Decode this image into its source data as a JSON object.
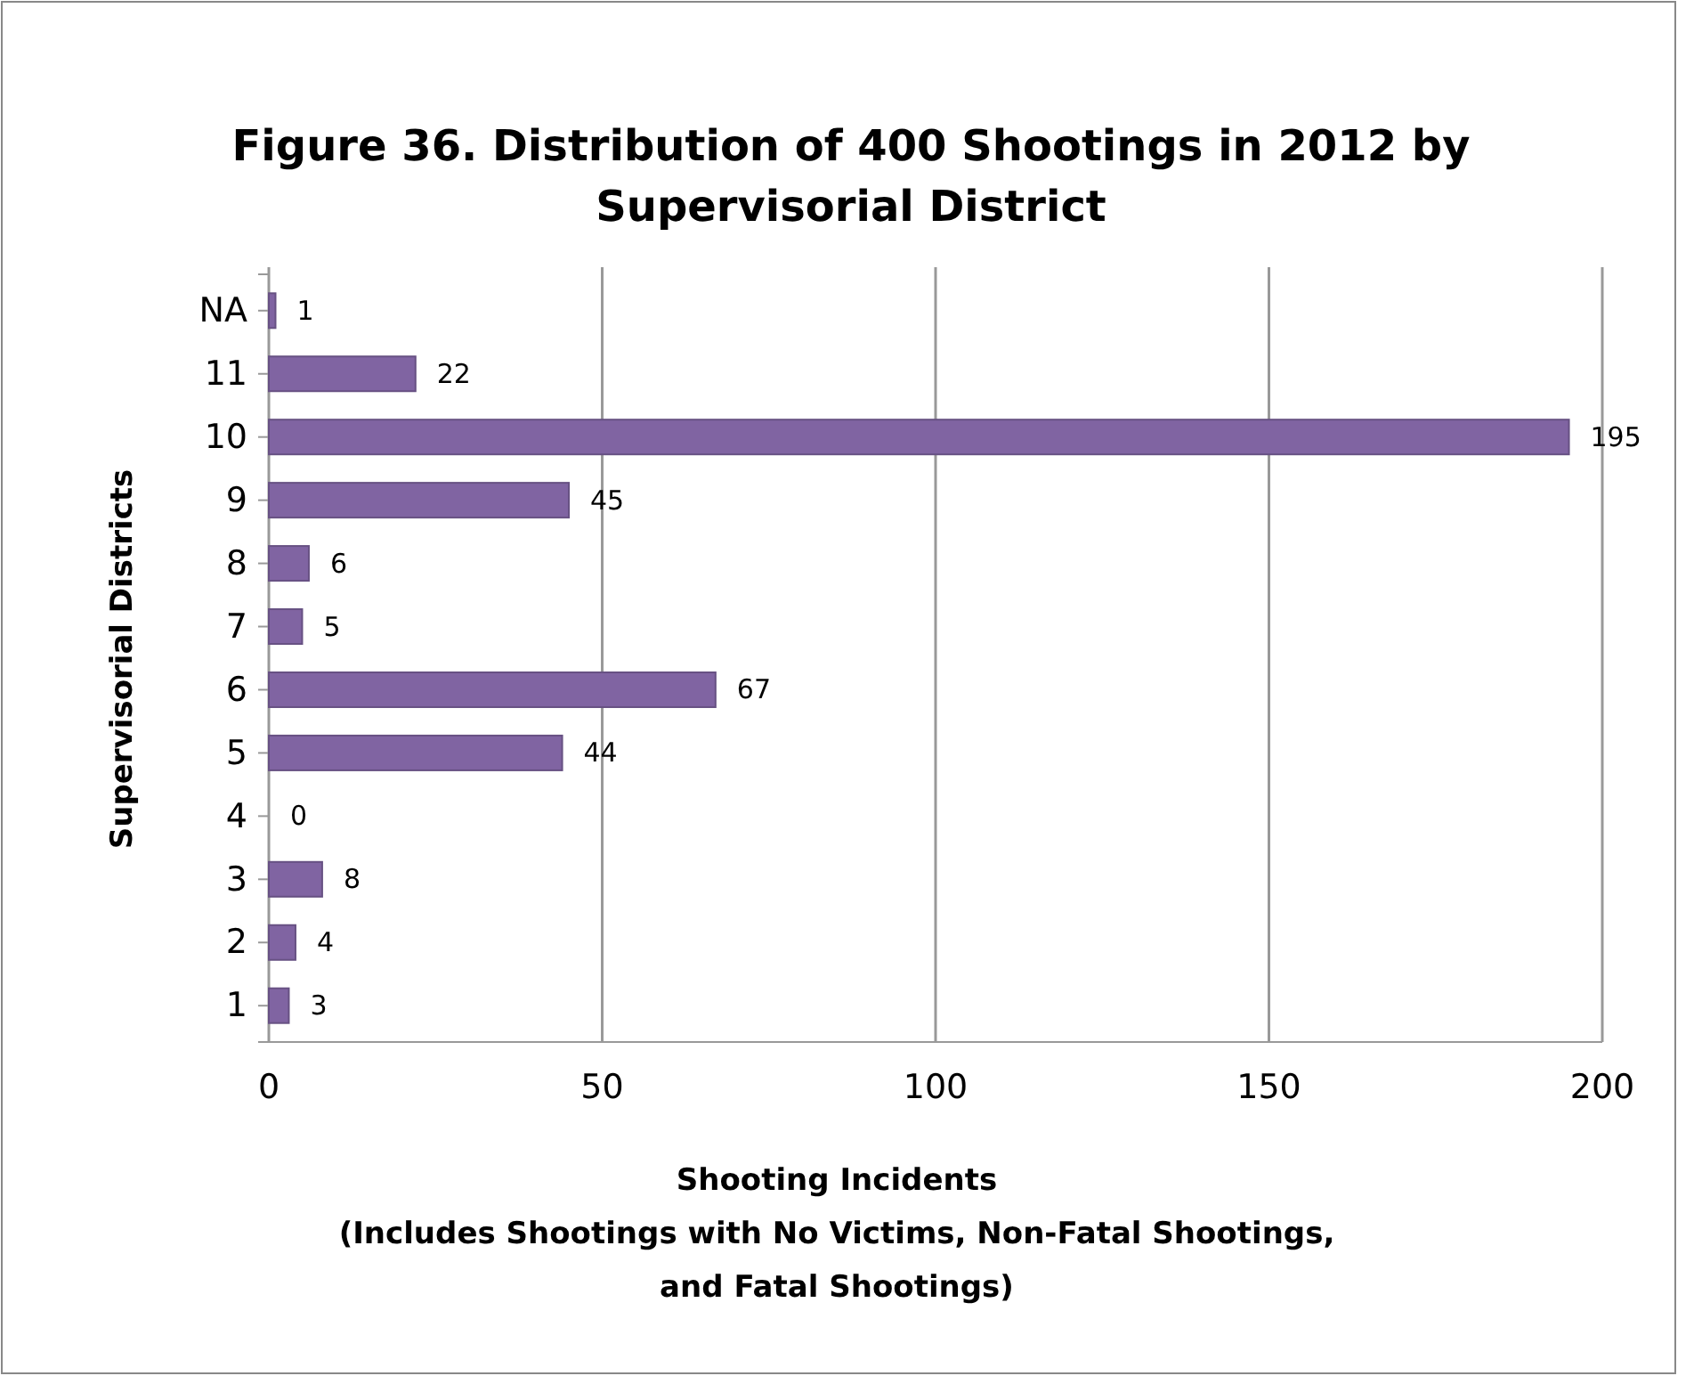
{
  "chart_data": {
    "type": "bar",
    "orientation": "horizontal",
    "title": "Figure 36. Distribution of 400 Shootings in 2012 by\nSupervisorial District",
    "xlabel": "Shooting Incidents\n(Includes Shootings with No Victims, Non-Fatal Shootings,\nand Fatal Shootings)",
    "ylabel": "Supervisorial Districts",
    "categories": [
      "NA",
      "11",
      "10",
      "9",
      "8",
      "7",
      "6",
      "5",
      "4",
      "3",
      "2",
      "1"
    ],
    "values": [
      1,
      22,
      195,
      45,
      6,
      5,
      67,
      44,
      0,
      8,
      4,
      3
    ],
    "color": "#8064a2",
    "xlim": [
      0,
      200
    ],
    "xticks": [
      0,
      50,
      100,
      150,
      200
    ],
    "grid": "x",
    "data_labels": true
  }
}
